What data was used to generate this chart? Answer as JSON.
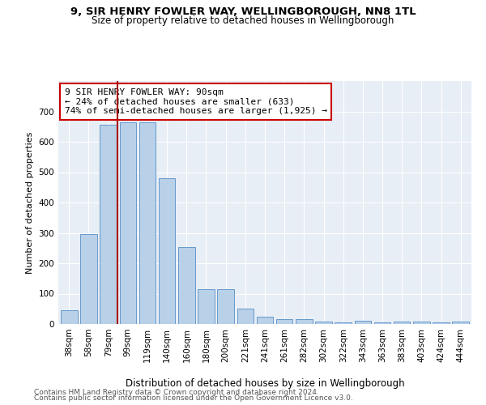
{
  "title1": "9, SIR HENRY FOWLER WAY, WELLINGBOROUGH, NN8 1TL",
  "title2": "Size of property relative to detached houses in Wellingborough",
  "xlabel": "Distribution of detached houses by size in Wellingborough",
  "ylabel": "Number of detached properties",
  "categories": [
    "38sqm",
    "58sqm",
    "79sqm",
    "99sqm",
    "119sqm",
    "140sqm",
    "160sqm",
    "180sqm",
    "200sqm",
    "221sqm",
    "241sqm",
    "261sqm",
    "282sqm",
    "302sqm",
    "322sqm",
    "343sqm",
    "363sqm",
    "383sqm",
    "403sqm",
    "424sqm",
    "444sqm"
  ],
  "values": [
    45,
    295,
    655,
    665,
    665,
    480,
    253,
    115,
    115,
    50,
    25,
    15,
    15,
    7,
    5,
    10,
    5,
    7,
    7,
    5,
    7
  ],
  "bar_color": "#b8d0e8",
  "bar_edge_color": "#6699cc",
  "vline_x": 2.48,
  "vline_color": "#aa0000",
  "annotation_text": "9 SIR HENRY FOWLER WAY: 90sqm\n← 24% of detached houses are smaller (633)\n74% of semi-detached houses are larger (1,925) →",
  "annotation_box_color": "#cc0000",
  "ylim": [
    0,
    800
  ],
  "yticks": [
    0,
    100,
    200,
    300,
    400,
    500,
    600,
    700
  ],
  "plot_bg_color": "#e8eef5",
  "footer1": "Contains HM Land Registry data © Crown copyright and database right 2024.",
  "footer2": "Contains public sector information licensed under the Open Government Licence v3.0.",
  "title1_fontsize": 9.5,
  "title2_fontsize": 8.5,
  "xlabel_fontsize": 8.5,
  "ylabel_fontsize": 8,
  "tick_fontsize": 7.5,
  "footer_fontsize": 6.5,
  "annotation_fontsize": 8
}
